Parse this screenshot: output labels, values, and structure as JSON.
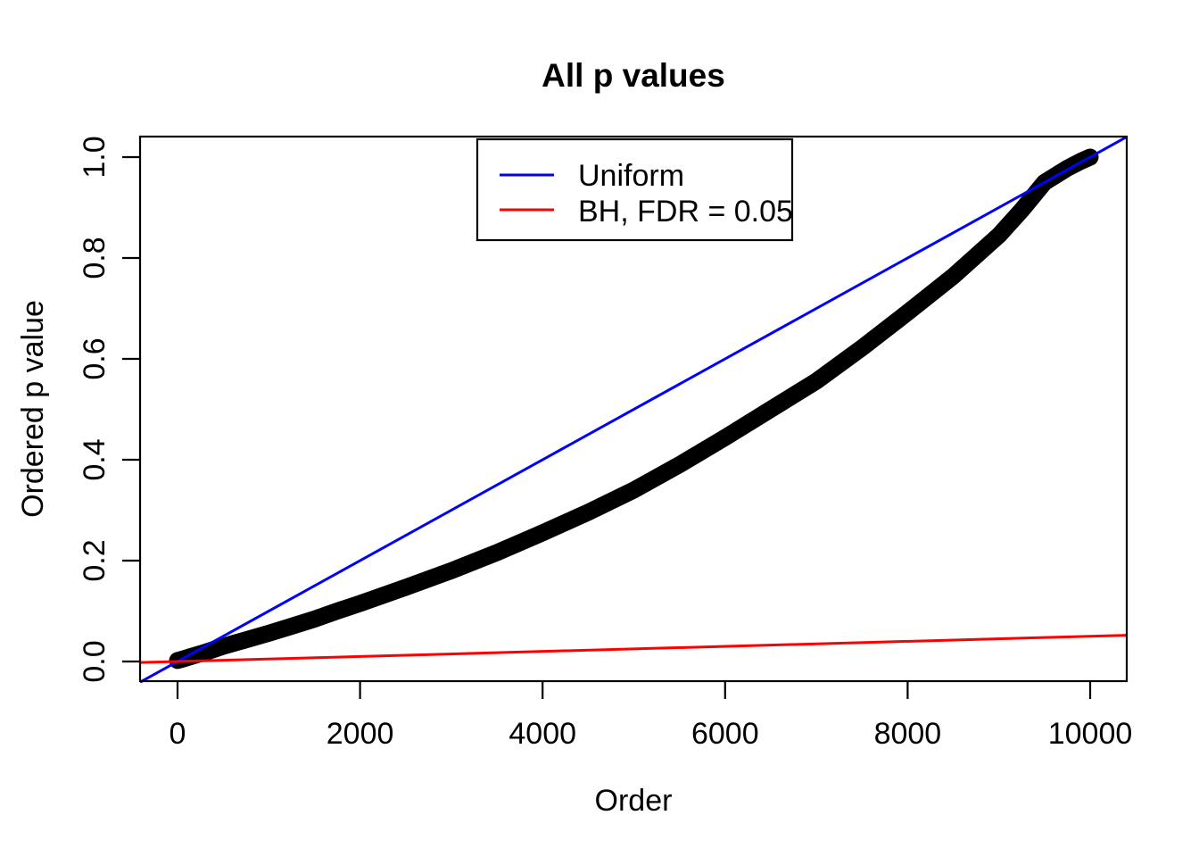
{
  "title": "All p values",
  "chart_data": {
    "type": "scatter",
    "title": "All p values",
    "xlabel": "Order",
    "ylabel": "Ordered p value",
    "xlim": [
      0,
      10000
    ],
    "ylim": [
      0,
      1
    ],
    "grid": false,
    "background": "#ffffff",
    "axis_color": "#000000",
    "x_ticks": {
      "values": [
        0,
        2000,
        4000,
        6000,
        8000,
        10000
      ],
      "labels": [
        "0",
        "2000",
        "4000",
        "6000",
        "8000",
        "10000"
      ]
    },
    "y_ticks": {
      "values": [
        0.0,
        0.2,
        0.4,
        0.6,
        0.8,
        1.0
      ],
      "labels": [
        "0.0",
        "0.2",
        "0.4",
        "0.6",
        "0.8",
        "1.0"
      ]
    },
    "legend": {
      "position": "top-center-inside",
      "entries": [
        {
          "label": "Uniform",
          "color": "#0000ff"
        },
        {
          "label": "BH, FDR = 0.05",
          "color": "#ff0000"
        }
      ]
    },
    "series": [
      {
        "name": "ordered p values",
        "type": "points",
        "marker": "filled-circle",
        "color": "#000000",
        "points": [
          [
            0,
            0.002
          ],
          [
            60,
            0.005
          ],
          [
            150,
            0.01
          ],
          [
            300,
            0.018
          ],
          [
            500,
            0.03
          ],
          [
            750,
            0.043
          ],
          [
            1000,
            0.056
          ],
          [
            1250,
            0.07
          ],
          [
            1500,
            0.084
          ],
          [
            1750,
            0.1
          ],
          [
            2000,
            0.115
          ],
          [
            2500,
            0.147
          ],
          [
            3000,
            0.18
          ],
          [
            3500,
            0.216
          ],
          [
            4000,
            0.255
          ],
          [
            4500,
            0.296
          ],
          [
            5000,
            0.34
          ],
          [
            5500,
            0.39
          ],
          [
            6000,
            0.444
          ],
          [
            6500,
            0.5
          ],
          [
            7000,
            0.556
          ],
          [
            7500,
            0.622
          ],
          [
            8000,
            0.692
          ],
          [
            8500,
            0.764
          ],
          [
            9000,
            0.845
          ],
          [
            9250,
            0.895
          ],
          [
            9500,
            0.95
          ],
          [
            9750,
            0.978
          ],
          [
            9900,
            0.992
          ],
          [
            10000,
            1.0
          ]
        ]
      },
      {
        "name": "Uniform",
        "type": "abline",
        "color": "#0000ff",
        "intercept": 0,
        "slope": 0.0001
      },
      {
        "name": "BH, FDR = 0.05",
        "type": "abline",
        "color": "#ff0000",
        "intercept": 0,
        "slope": 5e-06
      }
    ]
  }
}
